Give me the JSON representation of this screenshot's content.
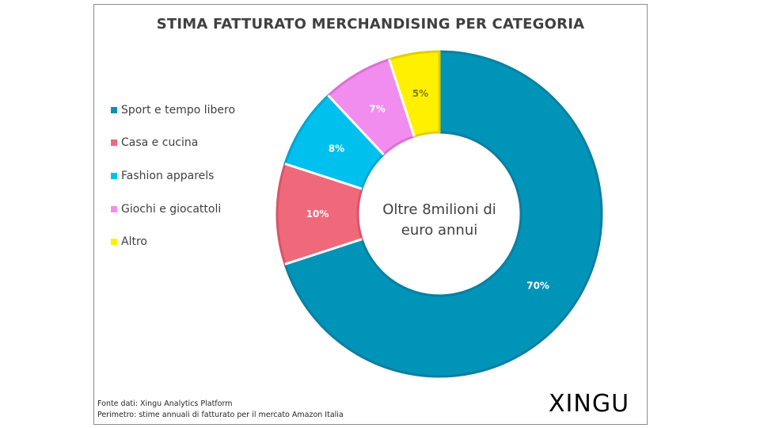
{
  "chart_data": {
    "type": "pie",
    "title": "STIMA FATTURATO MERCHANDISING PER CATEGORIA",
    "center_text_line1": "Oltre 8milioni di",
    "center_text_line2": "euro annui",
    "categories": [
      "Sport e tempo libero",
      "Casa e cucina",
      "Fashion apparels",
      "Giochi e giocattoli",
      "Altro"
    ],
    "values": [
      70,
      10,
      8,
      7,
      5
    ],
    "labels": [
      "70%",
      "10%",
      "8%",
      "7%",
      "5%"
    ],
    "colors": [
      "#0094b9",
      "#f0697b",
      "#00c0ee",
      "#f28df0",
      "#fff000"
    ],
    "edge_colors": [
      "#0b7fa0",
      "#d9546a",
      "#00a6cf",
      "#dc6fd8",
      "#e0d000"
    ],
    "label_colors": [
      "#ffffff",
      "#ffffff",
      "#ffffff",
      "#ffffff",
      "#808000"
    ],
    "legend_position": "left",
    "donut": true
  },
  "footer": {
    "source_line1": "Fonte dati: Xingu Analytics Platform",
    "source_line2": "Perimetro: stime annuali di fatturato per il mercato Amazon Italia"
  },
  "logo": {
    "text": "XINGU"
  }
}
